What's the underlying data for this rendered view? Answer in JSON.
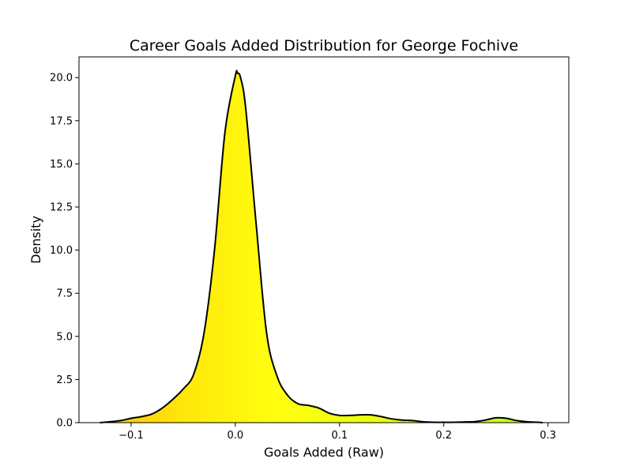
{
  "chart_data": {
    "type": "area",
    "title": "Career Goals Added Distribution for George Fochive",
    "xlabel": "Goals Added (Raw)",
    "ylabel": "Density",
    "xlim": [
      -0.15,
      0.32
    ],
    "ylim": [
      0,
      21.2
    ],
    "x_ticks": [
      -0.1,
      0.0,
      0.1,
      0.2,
      0.3
    ],
    "x_tick_labels": [
      "−0.1",
      "0.0",
      "0.1",
      "0.2",
      "0.3"
    ],
    "y_ticks": [
      0,
      2.5,
      5,
      7.5,
      10,
      12.5,
      15,
      17.5,
      20
    ],
    "y_tick_labels": [
      "0.0",
      "2.5",
      "5.0",
      "7.5",
      "10.0",
      "12.5",
      "15.0",
      "17.5",
      "20.0"
    ],
    "grid": false,
    "legend": "none",
    "fill_gradient": {
      "x_range": [
        -0.13,
        0.295
      ],
      "stops": [
        "#ffc20a",
        "#ffe80a",
        "#ffff0f",
        "#ecff10",
        "#d2ff14",
        "#bfff18"
      ]
    },
    "line_color": "#000000",
    "series": [
      {
        "x": [
          -0.13,
          -0.12,
          -0.11,
          -0.1,
          -0.09,
          -0.08,
          -0.07,
          -0.06,
          -0.05,
          -0.04,
          -0.03,
          -0.02,
          -0.01,
          0.0,
          0.002,
          0.005,
          0.01,
          0.02,
          0.03,
          0.04,
          0.05,
          0.06,
          0.07,
          0.08,
          0.09,
          0.1,
          0.11,
          0.12,
          0.13,
          0.14,
          0.15,
          0.16,
          0.17,
          0.18,
          0.19,
          0.2,
          0.21,
          0.22,
          0.23,
          0.24,
          0.25,
          0.26,
          0.27,
          0.28,
          0.29,
          0.295
        ],
        "y": [
          0.0,
          0.05,
          0.12,
          0.25,
          0.35,
          0.5,
          0.85,
          1.35,
          1.95,
          2.8,
          5.2,
          10.0,
          16.8,
          20.1,
          20.25,
          20.0,
          18.2,
          11.5,
          5.2,
          2.7,
          1.6,
          1.1,
          1.0,
          0.85,
          0.55,
          0.42,
          0.42,
          0.45,
          0.45,
          0.35,
          0.22,
          0.15,
          0.12,
          0.05,
          0.02,
          0.02,
          0.02,
          0.04,
          0.06,
          0.15,
          0.28,
          0.25,
          0.12,
          0.05,
          0.02,
          0.0
        ]
      }
    ]
  }
}
